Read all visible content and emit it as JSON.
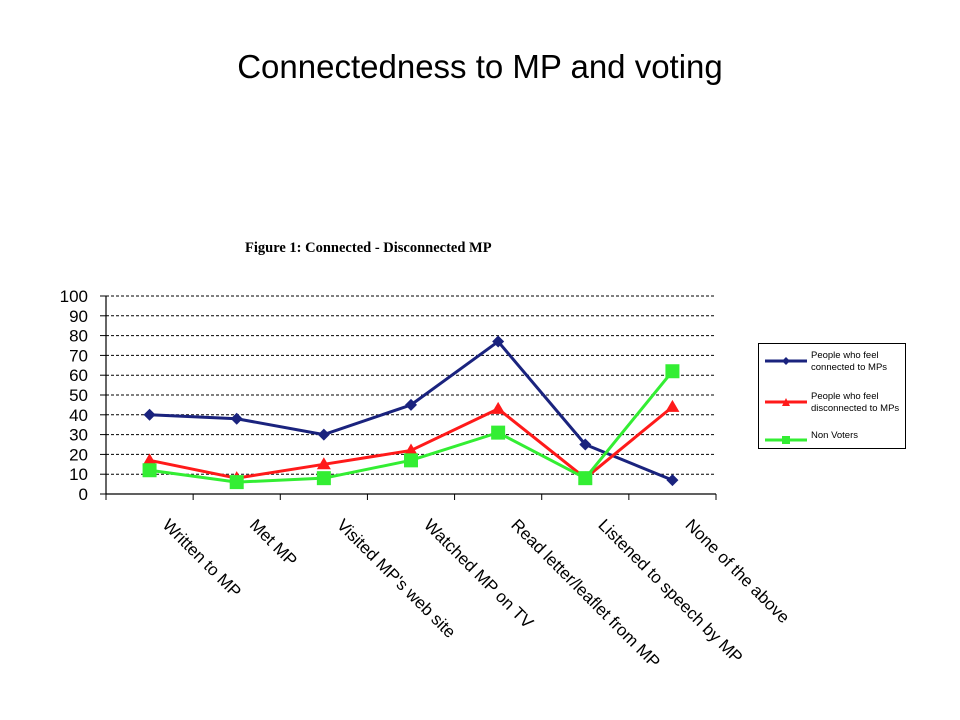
{
  "slide": {
    "title": "Connectedness to MP and voting"
  },
  "chart_data": {
    "type": "line",
    "title": "Figure 1: Connected - Disconnected MP",
    "categories": [
      "Written to MP",
      "Met MP",
      "Visited MP's web site",
      "Watched MP on TV",
      "Read letter/leaflet from MP",
      "Listened to speech by MP",
      "None of the above"
    ],
    "ylim": [
      0,
      100
    ],
    "yticks": [
      0,
      10,
      20,
      30,
      40,
      50,
      60,
      70,
      80,
      90,
      100
    ],
    "grid": "horizontal dashed",
    "legend_position": "right",
    "series": [
      {
        "name": "People who feel connected to MPs",
        "color": "#1a237e",
        "marker": "diamond",
        "values": [
          40,
          38,
          30,
          45,
          77,
          25,
          7
        ]
      },
      {
        "name": "People who feel disconnected to MPs",
        "color": "#ff1a1a",
        "marker": "triangle",
        "values": [
          17,
          8,
          15,
          22,
          43,
          8,
          44
        ]
      },
      {
        "name": "Non Voters",
        "color": "#33ee33",
        "marker": "square",
        "values": [
          12,
          6,
          8,
          17,
          31,
          8,
          62
        ]
      }
    ]
  }
}
